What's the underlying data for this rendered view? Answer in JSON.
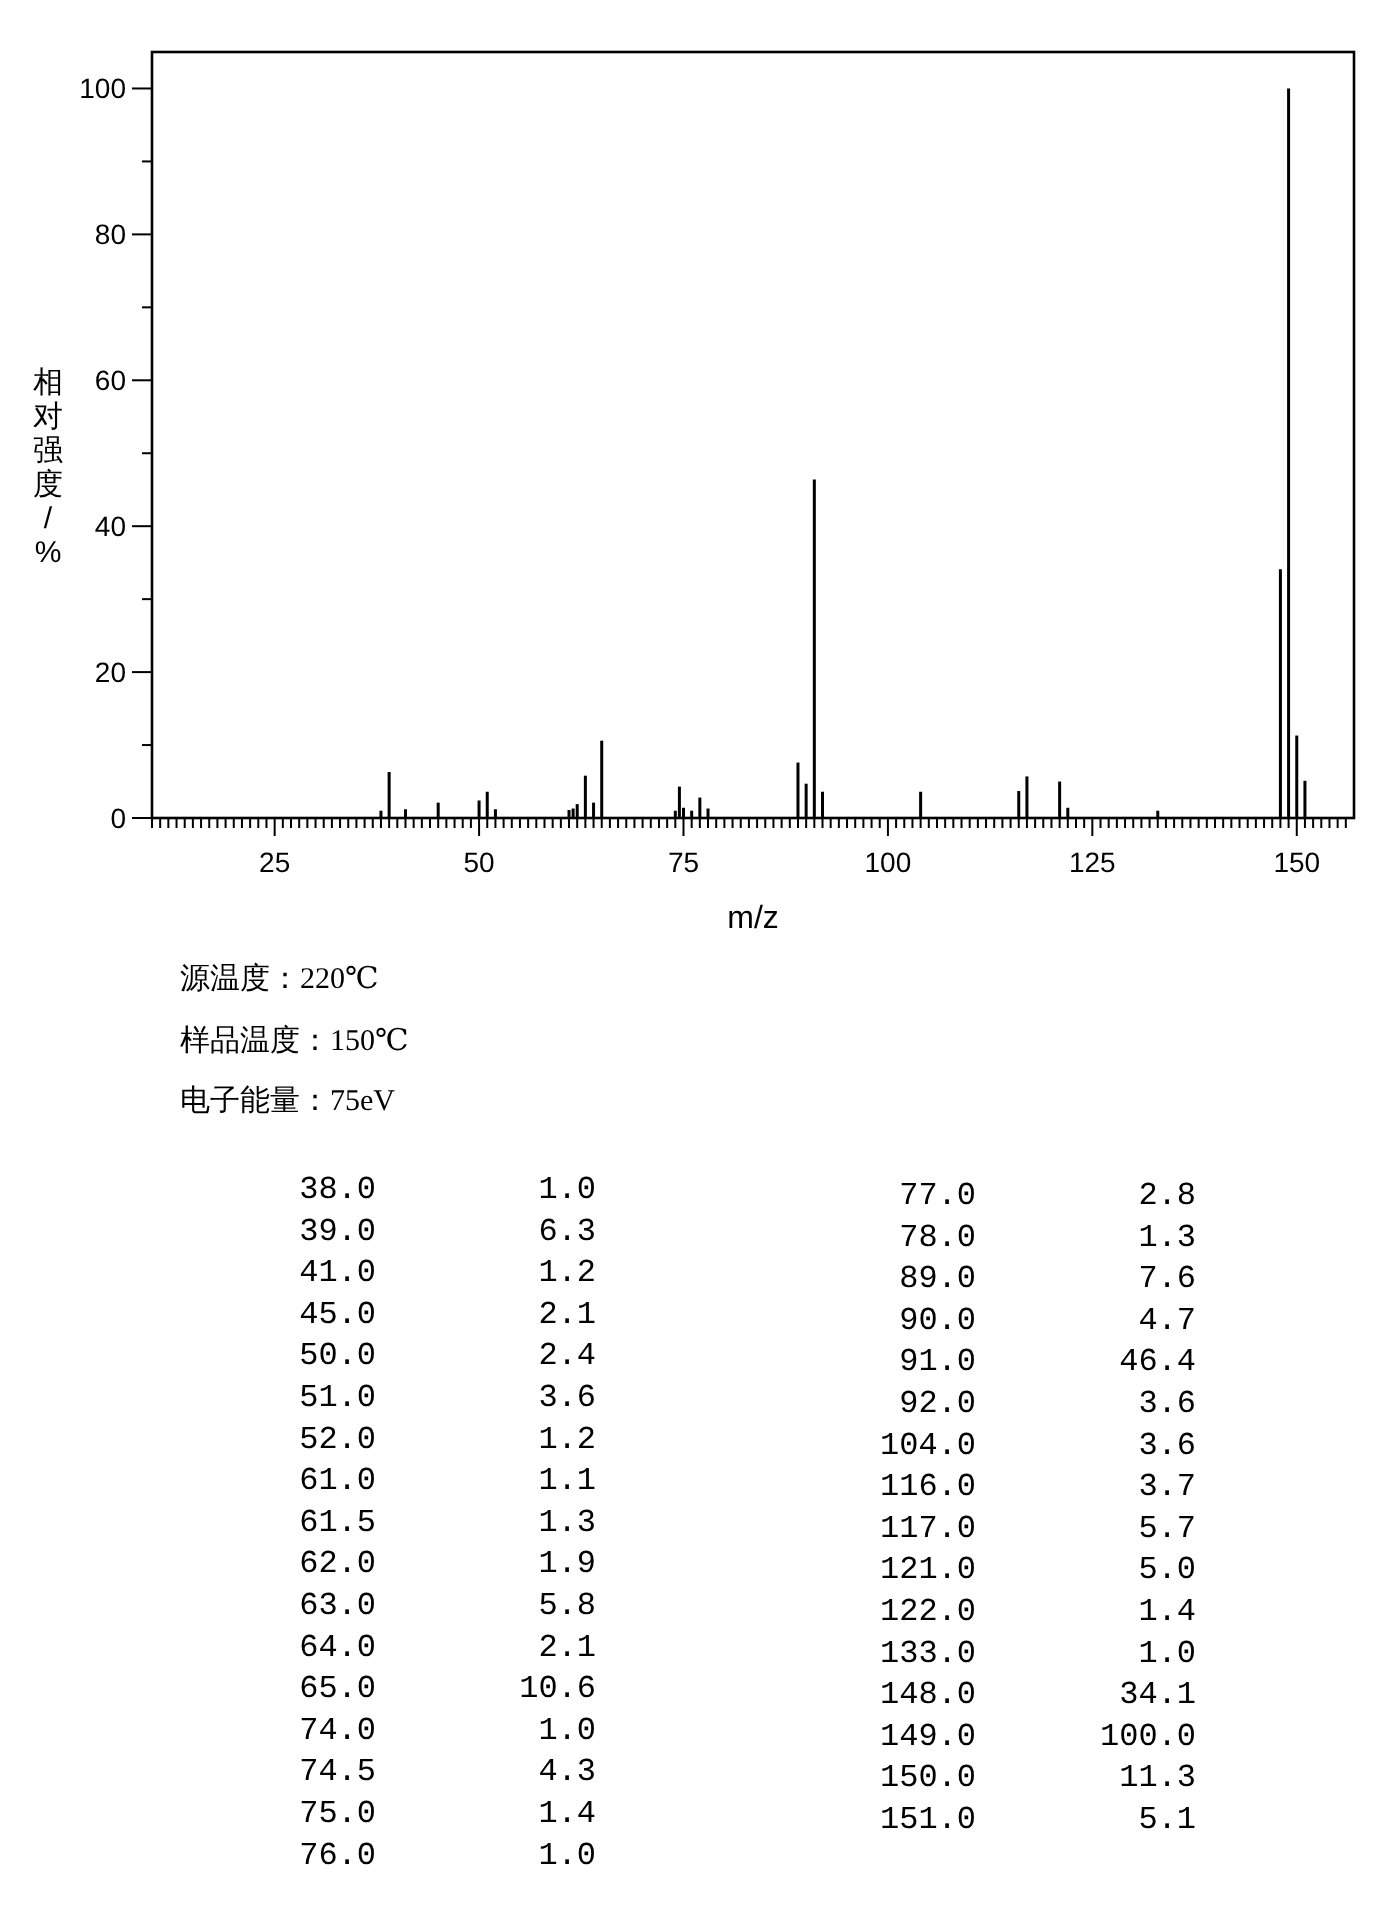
{
  "chart_data": {
    "type": "bar",
    "xlabel": "m/z",
    "ylabel": "相对强度/%",
    "x": [
      38,
      39,
      41,
      45,
      50,
      51,
      52,
      61,
      61.5,
      62,
      63,
      64,
      65,
      74,
      74.5,
      75,
      76,
      77,
      78,
      89,
      90,
      91,
      92,
      104,
      116,
      117,
      121,
      122,
      133,
      148,
      149,
      150,
      151
    ],
    "values": [
      1.0,
      6.3,
      1.2,
      2.1,
      2.4,
      3.6,
      1.2,
      1.1,
      1.3,
      1.9,
      5.8,
      2.1,
      10.6,
      1.0,
      4.3,
      1.4,
      1.0,
      2.8,
      1.3,
      7.6,
      4.7,
      46.4,
      3.6,
      3.6,
      3.7,
      5.7,
      5.0,
      1.4,
      1.0,
      34.1,
      100.0,
      11.3,
      5.1
    ],
    "color": "#000000",
    "xlim": [
      10,
      157
    ],
    "ylim": [
      0,
      105
    ],
    "xticks": [
      {
        "value": 10,
        "label": null
      },
      {
        "value": 11,
        "label": null
      },
      {
        "value": 12,
        "label": null
      },
      {
        "value": 13,
        "label": null
      },
      {
        "value": 14,
        "label": null
      },
      {
        "value": 15,
        "label": null
      },
      {
        "value": 16,
        "label": null
      },
      {
        "value": 17,
        "label": null
      },
      {
        "value": 18,
        "label": null
      },
      {
        "value": 19,
        "label": null
      },
      {
        "value": 20,
        "label": null
      },
      {
        "value": 21,
        "label": null
      },
      {
        "value": 22,
        "label": null
      },
      {
        "value": 23,
        "label": null
      },
      {
        "value": 24,
        "label": null
      },
      25,
      {
        "value": 26,
        "label": null
      },
      {
        "value": 27,
        "label": null
      },
      {
        "value": 28,
        "label": null
      },
      {
        "value": 29,
        "label": null
      },
      {
        "value": 30,
        "label": null
      },
      {
        "value": 31,
        "label": null
      },
      {
        "value": 32,
        "label": null
      },
      {
        "value": 33,
        "label": null
      },
      {
        "value": 34,
        "label": null
      },
      {
        "value": 35,
        "label": null
      },
      {
        "value": 36,
        "label": null
      },
      {
        "value": 37,
        "label": null
      },
      {
        "value": 38,
        "label": null
      },
      {
        "value": 39,
        "label": null
      },
      {
        "value": 40,
        "label": null
      },
      {
        "value": 41,
        "label": null
      },
      {
        "value": 42,
        "label": null
      },
      {
        "value": 43,
        "label": null
      },
      {
        "value": 44,
        "label": null
      },
      {
        "value": 45,
        "label": null
      },
      {
        "value": 46,
        "label": null
      },
      {
        "value": 47,
        "label": null
      },
      {
        "value": 48,
        "label": null
      },
      {
        "value": 49,
        "label": null
      },
      50,
      {
        "value": 51,
        "label": null
      },
      {
        "value": 52,
        "label": null
      },
      {
        "value": 53,
        "label": null
      },
      {
        "value": 54,
        "label": null
      },
      {
        "value": 55,
        "label": null
      },
      {
        "value": 56,
        "label": null
      },
      {
        "value": 57,
        "label": null
      },
      {
        "value": 58,
        "label": null
      },
      {
        "value": 59,
        "label": null
      },
      {
        "value": 60,
        "label": null
      },
      {
        "value": 61,
        "label": null
      },
      {
        "value": 62,
        "label": null
      },
      {
        "value": 63,
        "label": null
      },
      {
        "value": 64,
        "label": null
      },
      {
        "value": 65,
        "label": null
      },
      {
        "value": 66,
        "label": null
      },
      {
        "value": 67,
        "label": null
      },
      {
        "value": 68,
        "label": null
      },
      {
        "value": 69,
        "label": null
      },
      {
        "value": 70,
        "label": null
      },
      {
        "value": 71,
        "label": null
      },
      {
        "value": 72,
        "label": null
      },
      {
        "value": 73,
        "label": null
      },
      {
        "value": 74,
        "label": null
      },
      75,
      {
        "value": 76,
        "label": null
      },
      {
        "value": 77,
        "label": null
      },
      {
        "value": 78,
        "label": null
      },
      {
        "value": 79,
        "label": null
      },
      {
        "value": 80,
        "label": null
      },
      {
        "value": 81,
        "label": null
      },
      {
        "value": 82,
        "label": null
      },
      {
        "value": 83,
        "label": null
      },
      {
        "value": 84,
        "label": null
      },
      {
        "value": 85,
        "label": null
      },
      {
        "value": 86,
        "label": null
      },
      {
        "value": 87,
        "label": null
      },
      {
        "value": 88,
        "label": null
      },
      {
        "value": 89,
        "label": null
      },
      {
        "value": 90,
        "label": null
      },
      {
        "value": 91,
        "label": null
      },
      {
        "value": 92,
        "label": null
      },
      {
        "value": 93,
        "label": null
      },
      {
        "value": 94,
        "label": null
      },
      {
        "value": 95,
        "label": null
      },
      {
        "value": 96,
        "label": null
      },
      {
        "value": 97,
        "label": null
      },
      {
        "value": 98,
        "label": null
      },
      {
        "value": 99,
        "label": null
      },
      100,
      {
        "value": 101,
        "label": null
      },
      {
        "value": 102,
        "label": null
      },
      {
        "value": 103,
        "label": null
      },
      {
        "value": 104,
        "label": null
      },
      {
        "value": 105,
        "label": null
      },
      {
        "value": 106,
        "label": null
      },
      {
        "value": 107,
        "label": null
      },
      {
        "value": 108,
        "label": null
      },
      {
        "value": 109,
        "label": null
      },
      {
        "value": 110,
        "label": null
      },
      {
        "value": 111,
        "label": null
      },
      {
        "value": 112,
        "label": null
      },
      {
        "value": 113,
        "label": null
      },
      {
        "value": 114,
        "label": null
      },
      {
        "value": 115,
        "label": null
      },
      {
        "value": 116,
        "label": null
      },
      {
        "value": 117,
        "label": null
      },
      {
        "value": 118,
        "label": null
      },
      {
        "value": 119,
        "label": null
      },
      {
        "value": 120,
        "label": null
      },
      {
        "value": 121,
        "label": null
      },
      {
        "value": 122,
        "label": null
      },
      {
        "value": 123,
        "label": null
      },
      {
        "value": 124,
        "label": null
      },
      125,
      {
        "value": 126,
        "label": null
      },
      {
        "value": 127,
        "label": null
      },
      {
        "value": 128,
        "label": null
      },
      {
        "value": 129,
        "label": null
      },
      {
        "value": 130,
        "label": null
      },
      {
        "value": 131,
        "label": null
      },
      {
        "value": 132,
        "label": null
      },
      {
        "value": 133,
        "label": null
      },
      {
        "value": 134,
        "label": null
      },
      {
        "value": 135,
        "label": null
      },
      {
        "value": 136,
        "label": null
      },
      {
        "value": 137,
        "label": null
      },
      {
        "value": 138,
        "label": null
      },
      {
        "value": 139,
        "label": null
      },
      {
        "value": 140,
        "label": null
      },
      {
        "value": 141,
        "label": null
      },
      {
        "value": 142,
        "label": null
      },
      {
        "value": 143,
        "label": null
      },
      {
        "value": 144,
        "label": null
      },
      {
        "value": 145,
        "label": null
      },
      {
        "value": 146,
        "label": null
      },
      {
        "value": 147,
        "label": null
      },
      {
        "value": 148,
        "label": null
      },
      {
        "value": 149,
        "label": null
      },
      150,
      {
        "value": 151,
        "label": null
      },
      {
        "value": 152,
        "label": null
      },
      {
        "value": 153,
        "label": null
      },
      {
        "value": 154,
        "label": null
      },
      {
        "value": 155,
        "label": null
      },
      {
        "value": 156,
        "label": null
      }
    ],
    "yticks": [
      0,
      {
        "value": 10,
        "label": null
      },
      20,
      {
        "value": 30,
        "label": null
      },
      40,
      {
        "value": 50,
        "label": null
      },
      60,
      {
        "value": 70,
        "label": null
      },
      80,
      {
        "value": 90,
        "label": null
      },
      100
    ],
    "grid": false,
    "annotations": [
      "源温度：220℃",
      "样品温度：150℃",
      "电子能量：75eV",
      "38.0",
      "1.0",
      "39.0",
      "6.3",
      "41.0",
      "1.2",
      "45.0",
      "2.1",
      "50.0",
      "2.4",
      "51.0",
      "3.6",
      "52.0",
      "1.2",
      "61.0",
      "1.1",
      "61.5",
      "1.3",
      "62.0",
      "1.9",
      "63.0",
      "5.8",
      "64.0",
      "2.1",
      "65.0",
      "10.6",
      "74.0",
      "1.0",
      "74.5",
      "4.3",
      "75.0",
      "1.4",
      "76.0",
      "1.0",
      "77.0",
      "2.8",
      "78.0",
      "1.3",
      "89.0",
      "7.6",
      "90.0",
      "4.7",
      "91.0",
      "46.4",
      "92.0",
      "3.6",
      "104.0",
      "3.6",
      "116.0",
      "3.7",
      "117.0",
      "5.7",
      "121.0",
      "5.0",
      "122.0",
      "1.4",
      "133.0",
      "1.0",
      "148.0",
      "34.1",
      "149.0",
      "100.0",
      "150.0",
      "11.3",
      "151.0",
      "5.1"
    ]
  }
}
